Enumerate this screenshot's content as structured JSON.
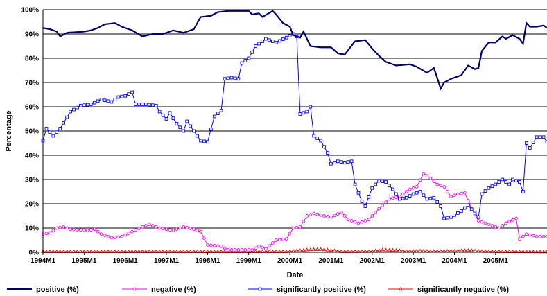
{
  "chart_data": {
    "type": "line",
    "title": "",
    "xlabel": "Date",
    "ylabel": "Percentage",
    "ylim": [
      0,
      100
    ],
    "y_ticks": [
      "0%",
      "10%",
      "20%",
      "30%",
      "40%",
      "50%",
      "60%",
      "70%",
      "80%",
      "90%",
      "100%"
    ],
    "x_ticks": [
      "1994M1",
      "1995M1",
      "1996M1",
      "1997M1",
      "1998M1",
      "1999M1",
      "2000M1",
      "2001M1",
      "2002M1",
      "2003M1",
      "2004M1",
      "2005M1"
    ],
    "x_start": "1994M1",
    "x_end": "2005M12",
    "grid": "horizontal",
    "legend_position": "bottom",
    "series": [
      {
        "name": "positive (%)",
        "color": "#000066",
        "marker": "none",
        "anchors": [
          [
            "1994M1",
            92.5
          ],
          [
            "1994M3",
            92
          ],
          [
            "1994M5",
            91
          ],
          [
            "1994M6",
            89
          ],
          [
            "1994M8",
            90.5
          ],
          [
            "1995M1",
            91
          ],
          [
            "1995M3",
            91.5
          ],
          [
            "1995M5",
            92.5
          ],
          [
            "1995M7",
            94
          ],
          [
            "1995M10",
            94.5
          ],
          [
            "1995M12",
            93
          ],
          [
            "1996M3",
            91.5
          ],
          [
            "1996M6",
            89
          ],
          [
            "1996M9",
            90
          ],
          [
            "1996M12",
            90
          ],
          [
            "1997M3",
            91.5
          ],
          [
            "1997M6",
            90.5
          ],
          [
            "1997M9",
            92
          ],
          [
            "1997M11",
            97
          ],
          [
            "1998M2",
            97.5
          ],
          [
            "1998M4",
            99
          ],
          [
            "1998M7",
            99.5
          ],
          [
            "1999M1",
            99.5
          ],
          [
            "1999M2",
            98
          ],
          [
            "1999M4",
            98.5
          ],
          [
            "1999M5",
            97
          ],
          [
            "1999M8",
            99.5
          ],
          [
            "1999M9",
            98
          ],
          [
            "1999M11",
            94.5
          ],
          [
            "2000M1",
            93
          ],
          [
            "2000M2",
            89.5
          ],
          [
            "2000M4",
            88.5
          ],
          [
            "2000M5",
            91
          ],
          [
            "2000M7",
            85
          ],
          [
            "2000M10",
            84.5
          ],
          [
            "2001M1",
            84.5
          ],
          [
            "2001M3",
            82
          ],
          [
            "2001M5",
            81.5
          ],
          [
            "2001M8",
            87
          ],
          [
            "2001M11",
            87.5
          ],
          [
            "2002M1",
            84
          ],
          [
            "2002M3",
            81
          ],
          [
            "2002M5",
            78.5
          ],
          [
            "2002M8",
            77
          ],
          [
            "2002M12",
            77.5
          ],
          [
            "2003M2",
            76.5
          ],
          [
            "2003M5",
            74
          ],
          [
            "2003M7",
            76
          ],
          [
            "2003M9",
            67.5
          ],
          [
            "2003M10",
            70
          ],
          [
            "2003M12",
            71.5
          ],
          [
            "2004M3",
            73
          ],
          [
            "2004M5",
            77
          ],
          [
            "2004M7",
            75.5
          ],
          [
            "2004M8",
            76
          ],
          [
            "2004M9",
            83
          ],
          [
            "2004M11",
            86.5
          ],
          [
            "2005M1",
            86.5
          ],
          [
            "2005M3",
            89
          ],
          [
            "2005M4",
            88
          ],
          [
            "2005M6",
            89.5
          ],
          [
            "2005M8",
            88
          ],
          [
            "2005M9",
            86
          ],
          [
            "2005M10",
            94.5
          ],
          [
            "2005M11",
            93
          ],
          [
            "2006M1",
            93
          ],
          [
            "2006M3",
            93.5
          ],
          [
            "2006M4",
            92.5
          ]
        ]
      },
      {
        "name": "negative (%)",
        "color": "#ff00ff",
        "marker": "circle",
        "anchors": [
          [
            "1994M1",
            7.5
          ],
          [
            "1994M3",
            8
          ],
          [
            "1994M5",
            10
          ],
          [
            "1994M7",
            10.5
          ],
          [
            "1994M9",
            9.5
          ],
          [
            "1995M2",
            9
          ],
          [
            "1995M4",
            9.5
          ],
          [
            "1995M6",
            7.5
          ],
          [
            "1995M9",
            6
          ],
          [
            "1995M12",
            6.5
          ],
          [
            "1996M3",
            8.5
          ],
          [
            "1996M6",
            10.5
          ],
          [
            "1996M8",
            11.5
          ],
          [
            "1996M11",
            10
          ],
          [
            "1997M3",
            9
          ],
          [
            "1997M6",
            10.5
          ],
          [
            "1997M9",
            9.5
          ],
          [
            "1997M11",
            8.5
          ],
          [
            "1998M1",
            3
          ],
          [
            "1998M5",
            2.5
          ],
          [
            "1998M7",
            1
          ],
          [
            "1998M10",
            1
          ],
          [
            "1999M2",
            1
          ],
          [
            "1999M4",
            2.5
          ],
          [
            "1999M6",
            1.5
          ],
          [
            "1999M9",
            5
          ],
          [
            "1999M12",
            5.5
          ],
          [
            "2000M2",
            10
          ],
          [
            "2000M4",
            10.5
          ],
          [
            "2000M6",
            15
          ],
          [
            "2000M8",
            16
          ],
          [
            "2000M11",
            15
          ],
          [
            "2001M1",
            14.5
          ],
          [
            "2001M4",
            16.5
          ],
          [
            "2001M6",
            13.5
          ],
          [
            "2001M9",
            12
          ],
          [
            "2001M12",
            13.5
          ],
          [
            "2002M3",
            18
          ],
          [
            "2002M6",
            22
          ],
          [
            "2002M9",
            23
          ],
          [
            "2002M12",
            26
          ],
          [
            "2003M2",
            27
          ],
          [
            "2003M4",
            32.5
          ],
          [
            "2003M6",
            30.5
          ],
          [
            "2003M8",
            28
          ],
          [
            "2003M10",
            27
          ],
          [
            "2003M12",
            23
          ],
          [
            "2004M2",
            24
          ],
          [
            "2004M4",
            24.5
          ],
          [
            "2004M6",
            18
          ],
          [
            "2004M8",
            13
          ],
          [
            "2004M10",
            12
          ],
          [
            "2004M12",
            11
          ],
          [
            "2005M2",
            10
          ],
          [
            "2005M4",
            12
          ],
          [
            "2005M7",
            14
          ],
          [
            "2005M8",
            5.5
          ],
          [
            "2005M10",
            7.5
          ],
          [
            "2006M1",
            6.5
          ],
          [
            "2006M4",
            6.5
          ]
        ]
      },
      {
        "name": "significantly positive (%)",
        "color": "#0000ff",
        "marker": "square",
        "anchors": [
          [
            "1994M1",
            46
          ],
          [
            "1994M2",
            51
          ],
          [
            "1994M4",
            48
          ],
          [
            "1994M6",
            51
          ],
          [
            "1994M9",
            58
          ],
          [
            "1994M12",
            60.5
          ],
          [
            "1995M3",
            61
          ],
          [
            "1995M6",
            63
          ],
          [
            "1995M9",
            62
          ],
          [
            "1995M11",
            64
          ],
          [
            "1996M1",
            64.5
          ],
          [
            "1996M3",
            66
          ],
          [
            "1996M4",
            61
          ],
          [
            "1996M7",
            61
          ],
          [
            "1996M10",
            60.5
          ],
          [
            "1996M11",
            58
          ],
          [
            "1997M1",
            55
          ],
          [
            "1997M2",
            57.5
          ],
          [
            "1997M4",
            53
          ],
          [
            "1997M6",
            50
          ],
          [
            "1997M7",
            54
          ],
          [
            "1997M9",
            50
          ],
          [
            "1997M11",
            46
          ],
          [
            "1998M1",
            45.5
          ],
          [
            "1998M3",
            56
          ],
          [
            "1998M5",
            58.5
          ],
          [
            "1998M6",
            71.5
          ],
          [
            "1998M8",
            72
          ],
          [
            "1998M10",
            71.5
          ],
          [
            "1998M11",
            78
          ],
          [
            "1999M1",
            80
          ],
          [
            "1999M3",
            85
          ],
          [
            "1999M6",
            88
          ],
          [
            "1999M9",
            86.5
          ],
          [
            "1999M12",
            88.5
          ],
          [
            "2000M2",
            90
          ],
          [
            "2000M3",
            89
          ],
          [
            "2000M4",
            57
          ],
          [
            "2000M6",
            58
          ],
          [
            "2000M7",
            60
          ],
          [
            "2000M8",
            48
          ],
          [
            "2000M10",
            46
          ],
          [
            "2000M12",
            41
          ],
          [
            "2001M1",
            36.5
          ],
          [
            "2001M3",
            37.5
          ],
          [
            "2001M5",
            37
          ],
          [
            "2001M7",
            37.5
          ],
          [
            "2001M8",
            28
          ],
          [
            "2001M10",
            21
          ],
          [
            "2001M11",
            19
          ],
          [
            "2002M1",
            26.5
          ],
          [
            "2002M3",
            29.5
          ],
          [
            "2002M5",
            29
          ],
          [
            "2002M7",
            26
          ],
          [
            "2002M9",
            22
          ],
          [
            "2002M11",
            22.5
          ],
          [
            "2003M1",
            24
          ],
          [
            "2003M3",
            25
          ],
          [
            "2003M5",
            22
          ],
          [
            "2003M7",
            22.5
          ],
          [
            "2003M9",
            19
          ],
          [
            "2003M10",
            14
          ],
          [
            "2003M12",
            14.5
          ],
          [
            "2004M3",
            17
          ],
          [
            "2004M5",
            19.5
          ],
          [
            "2004M7",
            16
          ],
          [
            "2004M8",
            14.5
          ],
          [
            "2004M9",
            24
          ],
          [
            "2004M11",
            26.5
          ],
          [
            "2005M1",
            28
          ],
          [
            "2005M3",
            30
          ],
          [
            "2005M5",
            28
          ],
          [
            "2005M6",
            30
          ],
          [
            "2005M8",
            29
          ],
          [
            "2005M9",
            25
          ],
          [
            "2005M10",
            45
          ],
          [
            "2005M11",
            43
          ],
          [
            "2006M1",
            47.5
          ],
          [
            "2006M3",
            47.5
          ],
          [
            "2006M4",
            45.5
          ]
        ]
      },
      {
        "name": "significantly negative (%)",
        "color": "#ff0000",
        "marker": "triangle",
        "anchors": [
          [
            "1994M1",
            0.3
          ],
          [
            "1999M12",
            0.3
          ],
          [
            "2000M3",
            0.6
          ],
          [
            "2000M6",
            1
          ],
          [
            "2000M10",
            1.2
          ],
          [
            "2001M1",
            0.8
          ],
          [
            "2001M4",
            0.3
          ],
          [
            "2002M1",
            0.4
          ],
          [
            "2002M4",
            1
          ],
          [
            "2002M8",
            0.8
          ],
          [
            "2002M11",
            0.4
          ],
          [
            "2003M3",
            0.6
          ],
          [
            "2003M6",
            0.4
          ],
          [
            "2004M1",
            0.5
          ],
          [
            "2004M5",
            0.8
          ],
          [
            "2004M9",
            0.4
          ],
          [
            "2005M3",
            0.3
          ],
          [
            "2006M4",
            0.2
          ]
        ]
      }
    ]
  }
}
